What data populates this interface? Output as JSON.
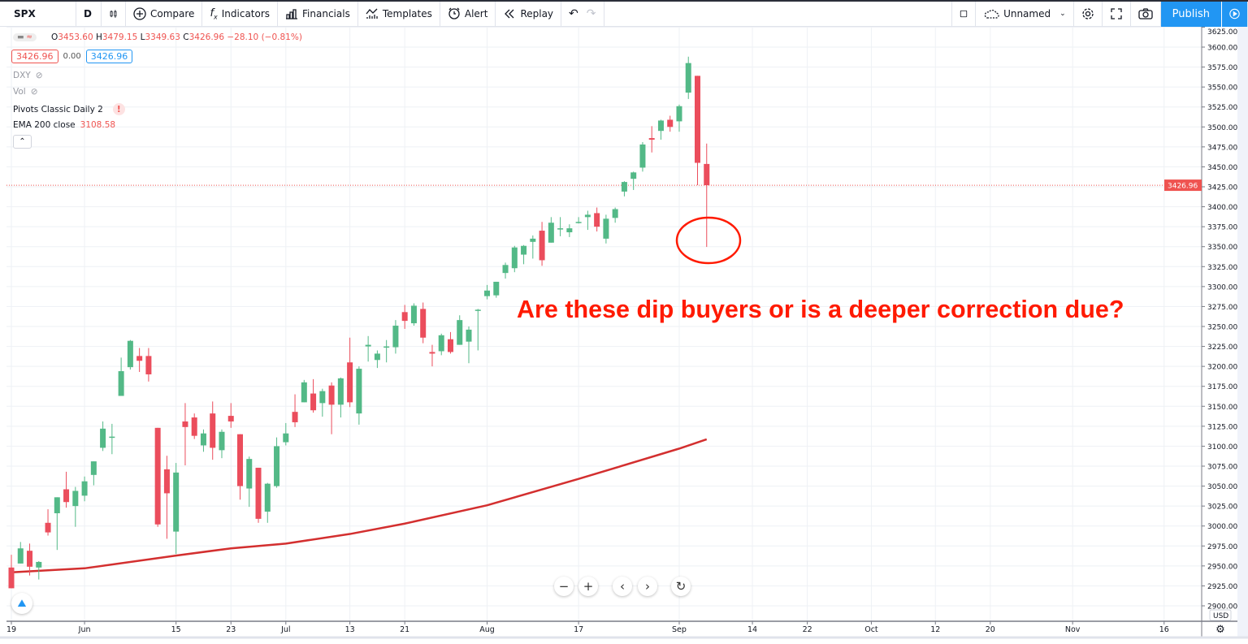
{
  "toolbar": {
    "symbol": "SPX",
    "interval": "D",
    "compare": "Compare",
    "indicators": "Indicators",
    "financials": "Financials",
    "templates": "Templates",
    "alert": "Alert",
    "replay": "Replay",
    "layout_name": "Unnamed",
    "publish": "Publish"
  },
  "legend": {
    "open_label": "O",
    "open": "3453.60",
    "high_label": "H",
    "high": "3479.15",
    "low_label": "L",
    "low": "3349.63",
    "close_label": "C",
    "close": "3426.96",
    "change": "−28.10 (−0.81%)",
    "bid": "3426.96",
    "spread": "0.00",
    "ask": "3426.96",
    "dxy": "DXY",
    "vol": "Vol",
    "pivots": "Pivots Classic Daily 2",
    "ema_label": "EMA 200 close",
    "ema_value": "3108.58"
  },
  "annotation": "Are these dip buyers or is a deeper correction due?",
  "colors": {
    "up": "#53b987",
    "down": "#eb4d5c",
    "ema": "#d32f2f",
    "accent": "#2196f3",
    "annotation": "#ff1a00"
  },
  "chart_data": {
    "type": "candlestick",
    "symbol": "SPX",
    "currency": "USD",
    "last_price": "3426.96",
    "ylim": [
      2887.5,
      3625
    ],
    "y_ticks": [
      "3625.00",
      "3600.00",
      "3575.00",
      "3550.00",
      "3525.00",
      "3500.00",
      "3475.00",
      "3450.00",
      "3425.00",
      "3400.00",
      "3375.00",
      "3350.00",
      "3325.00",
      "3300.00",
      "3275.00",
      "3250.00",
      "3225.00",
      "3200.00",
      "3175.00",
      "3150.00",
      "3125.00",
      "3100.00",
      "3075.00",
      "3050.00",
      "3025.00",
      "3000.00",
      "2975.00",
      "2950.00",
      "2925.00",
      "2900.00"
    ],
    "x_ticks": [
      [
        "2020-05-19",
        "19"
      ],
      [
        "2020-06-01",
        "Jun"
      ],
      [
        "2020-06-15",
        "15"
      ],
      [
        "2020-06-23",
        "23"
      ],
      [
        "2020-07-01",
        "Jul"
      ],
      [
        "2020-07-13",
        "13"
      ],
      [
        "2020-07-21",
        "21"
      ],
      [
        "2020-08-03",
        "Aug"
      ],
      [
        "2020-08-17",
        "17"
      ],
      [
        "2020-09-01",
        "Sep"
      ],
      [
        "2020-09-14",
        "14"
      ],
      [
        "2020-09-22",
        "22"
      ],
      [
        "2020-10-01",
        "Oct"
      ],
      [
        "2020-10-12",
        "12"
      ],
      [
        "2020-10-20",
        "20"
      ],
      [
        "2020-11-02",
        "Nov"
      ],
      [
        "2020-11-16",
        "16"
      ]
    ],
    "candles": [
      [
        "2020-05-19",
        2948,
        2964,
        2922,
        2922
      ],
      [
        "2020-05-20",
        2953,
        2980,
        2953,
        2972
      ],
      [
        "2020-05-21",
        2969,
        2978,
        2938,
        2949
      ],
      [
        "2020-05-22",
        2948,
        2956,
        2933,
        2955
      ],
      [
        "2020-05-26",
        3004,
        3021,
        2988,
        2992
      ],
      [
        "2020-05-27",
        3016,
        3036,
        2970,
        3036
      ],
      [
        "2020-05-28",
        3046,
        3068,
        3023,
        3030
      ],
      [
        "2020-05-29",
        3025,
        3049,
        2999,
        3044
      ],
      [
        "2020-06-01",
        3038,
        3062,
        3031,
        3056
      ],
      [
        "2020-06-02",
        3064,
        3081,
        3051,
        3081
      ],
      [
        "2020-06-03",
        3098,
        3131,
        3094,
        3122
      ],
      [
        "2020-06-04",
        3112,
        3128,
        3090,
        3112
      ],
      [
        "2020-06-05",
        3163,
        3211,
        3163,
        3194
      ],
      [
        "2020-06-08",
        3199,
        3233,
        3196,
        3232
      ],
      [
        "2020-06-09",
        3213,
        3223,
        3193,
        3207
      ],
      [
        "2020-06-10",
        3213,
        3223,
        3181,
        3190
      ],
      [
        "2020-06-11",
        3123,
        3123,
        2999,
        3002
      ],
      [
        "2020-06-12",
        3071,
        3088,
        2984,
        3041
      ],
      [
        "2020-06-15",
        2993,
        3079,
        2965,
        3067
      ],
      [
        "2020-06-16",
        3131,
        3154,
        3076,
        3124
      ],
      [
        "2020-06-17",
        3136,
        3141,
        3109,
        3113
      ],
      [
        "2020-06-18",
        3101,
        3121,
        3093,
        3116
      ],
      [
        "2020-06-19",
        3141,
        3156,
        3083,
        3098
      ],
      [
        "2020-06-22",
        3095,
        3121,
        3085,
        3118
      ],
      [
        "2020-06-23",
        3138,
        3154,
        3123,
        3131
      ],
      [
        "2020-06-24",
        3115,
        3115,
        3033,
        3050
      ],
      [
        "2020-06-25",
        3047,
        3087,
        3024,
        3084
      ],
      [
        "2020-06-26",
        3073,
        3073,
        3004,
        3009
      ],
      [
        "2020-06-29",
        3018,
        3054,
        3004,
        3053
      ],
      [
        "2020-06-30",
        3050,
        3111,
        3048,
        3100
      ],
      [
        "2020-07-01",
        3105,
        3129,
        3101,
        3116
      ],
      [
        "2020-07-02",
        3143,
        3165,
        3124,
        3130
      ],
      [
        "2020-07-06",
        3155,
        3183,
        3155,
        3180
      ],
      [
        "2020-07-07",
        3166,
        3184,
        3142,
        3145
      ],
      [
        "2020-07-08",
        3154,
        3172,
        3137,
        3169
      ],
      [
        "2020-07-09",
        3176,
        3180,
        3115,
        3152
      ],
      [
        "2020-07-10",
        3152,
        3186,
        3136,
        3185
      ],
      [
        "2020-07-13",
        3205,
        3236,
        3149,
        3155
      ],
      [
        "2020-07-14",
        3141,
        3200,
        3127,
        3197
      ],
      [
        "2020-07-15",
        3225,
        3238,
        3206,
        3227
      ],
      [
        "2020-07-16",
        3208,
        3220,
        3198,
        3216
      ],
      [
        "2020-07-17",
        3224,
        3233,
        3205,
        3225
      ],
      [
        "2020-07-20",
        3224,
        3258,
        3216,
        3251
      ],
      [
        "2020-07-21",
        3268,
        3277,
        3247,
        3257
      ],
      [
        "2020-07-22",
        3254,
        3279,
        3251,
        3276
      ],
      [
        "2020-07-23",
        3272,
        3280,
        3229,
        3236
      ],
      [
        "2020-07-24",
        3218,
        3227,
        3200,
        3216
      ],
      [
        "2020-07-27",
        3219,
        3241,
        3214,
        3239
      ],
      [
        "2020-07-28",
        3234,
        3243,
        3216,
        3218
      ],
      [
        "2020-07-29",
        3227,
        3264,
        3227,
        3258
      ],
      [
        "2020-07-30",
        3231,
        3250,
        3204,
        3246
      ],
      [
        "2020-07-31",
        3270,
        3272,
        3220,
        3271
      ],
      [
        "2020-08-03",
        3288,
        3302,
        3284,
        3295
      ],
      [
        "2020-08-04",
        3289,
        3306,
        3286,
        3306
      ],
      [
        "2020-08-05",
        3317,
        3330,
        3310,
        3327
      ],
      [
        "2020-08-06",
        3323,
        3351,
        3318,
        3349
      ],
      [
        "2020-08-07",
        3340,
        3352,
        3328,
        3351
      ],
      [
        "2020-08-10",
        3356,
        3364,
        3335,
        3360
      ],
      [
        "2020-08-11",
        3370,
        3381,
        3326,
        3333
      ],
      [
        "2020-08-12",
        3355,
        3387,
        3355,
        3380
      ],
      [
        "2020-08-13",
        3372,
        3387,
        3363,
        3373
      ],
      [
        "2020-08-14",
        3368,
        3378,
        3362,
        3373
      ],
      [
        "2020-08-17",
        3380,
        3387,
        3379,
        3381
      ],
      [
        "2020-08-18",
        3387,
        3395,
        3371,
        3390
      ],
      [
        "2020-08-19",
        3392,
        3399,
        3369,
        3375
      ],
      [
        "2020-08-20",
        3360,
        3390,
        3354,
        3385
      ],
      [
        "2020-08-21",
        3386,
        3399,
        3380,
        3397
      ],
      [
        "2020-08-24",
        3419,
        3432,
        3413,
        3431
      ],
      [
        "2020-08-25",
        3435,
        3444,
        3421,
        3443
      ],
      [
        "2020-08-26",
        3449,
        3481,
        3444,
        3478
      ],
      [
        "2020-08-27",
        3486,
        3501,
        3468,
        3484
      ],
      [
        "2020-08-28",
        3495,
        3509,
        3484,
        3508
      ],
      [
        "2020-08-31",
        3509,
        3514,
        3494,
        3500
      ],
      [
        "2020-09-01",
        3507,
        3528,
        3494,
        3526
      ],
      [
        "2020-09-02",
        3543,
        3588,
        3535,
        3580
      ],
      [
        "2020-09-03",
        3564,
        3564,
        3427,
        3455
      ],
      [
        "2020-09-04",
        3453.6,
        3479.15,
        3349.63,
        3426.96
      ]
    ],
    "ema200": [
      [
        "2020-05-19",
        2942
      ],
      [
        "2020-06-01",
        2947
      ],
      [
        "2020-06-15",
        2963
      ],
      [
        "2020-06-23",
        2972
      ],
      [
        "2020-07-01",
        2978
      ],
      [
        "2020-07-13",
        2990
      ],
      [
        "2020-07-21",
        3003
      ],
      [
        "2020-08-03",
        3026
      ],
      [
        "2020-08-17",
        3059
      ],
      [
        "2020-09-01",
        3097
      ],
      [
        "2020-09-04",
        3108.58
      ]
    ],
    "grid": true
  }
}
